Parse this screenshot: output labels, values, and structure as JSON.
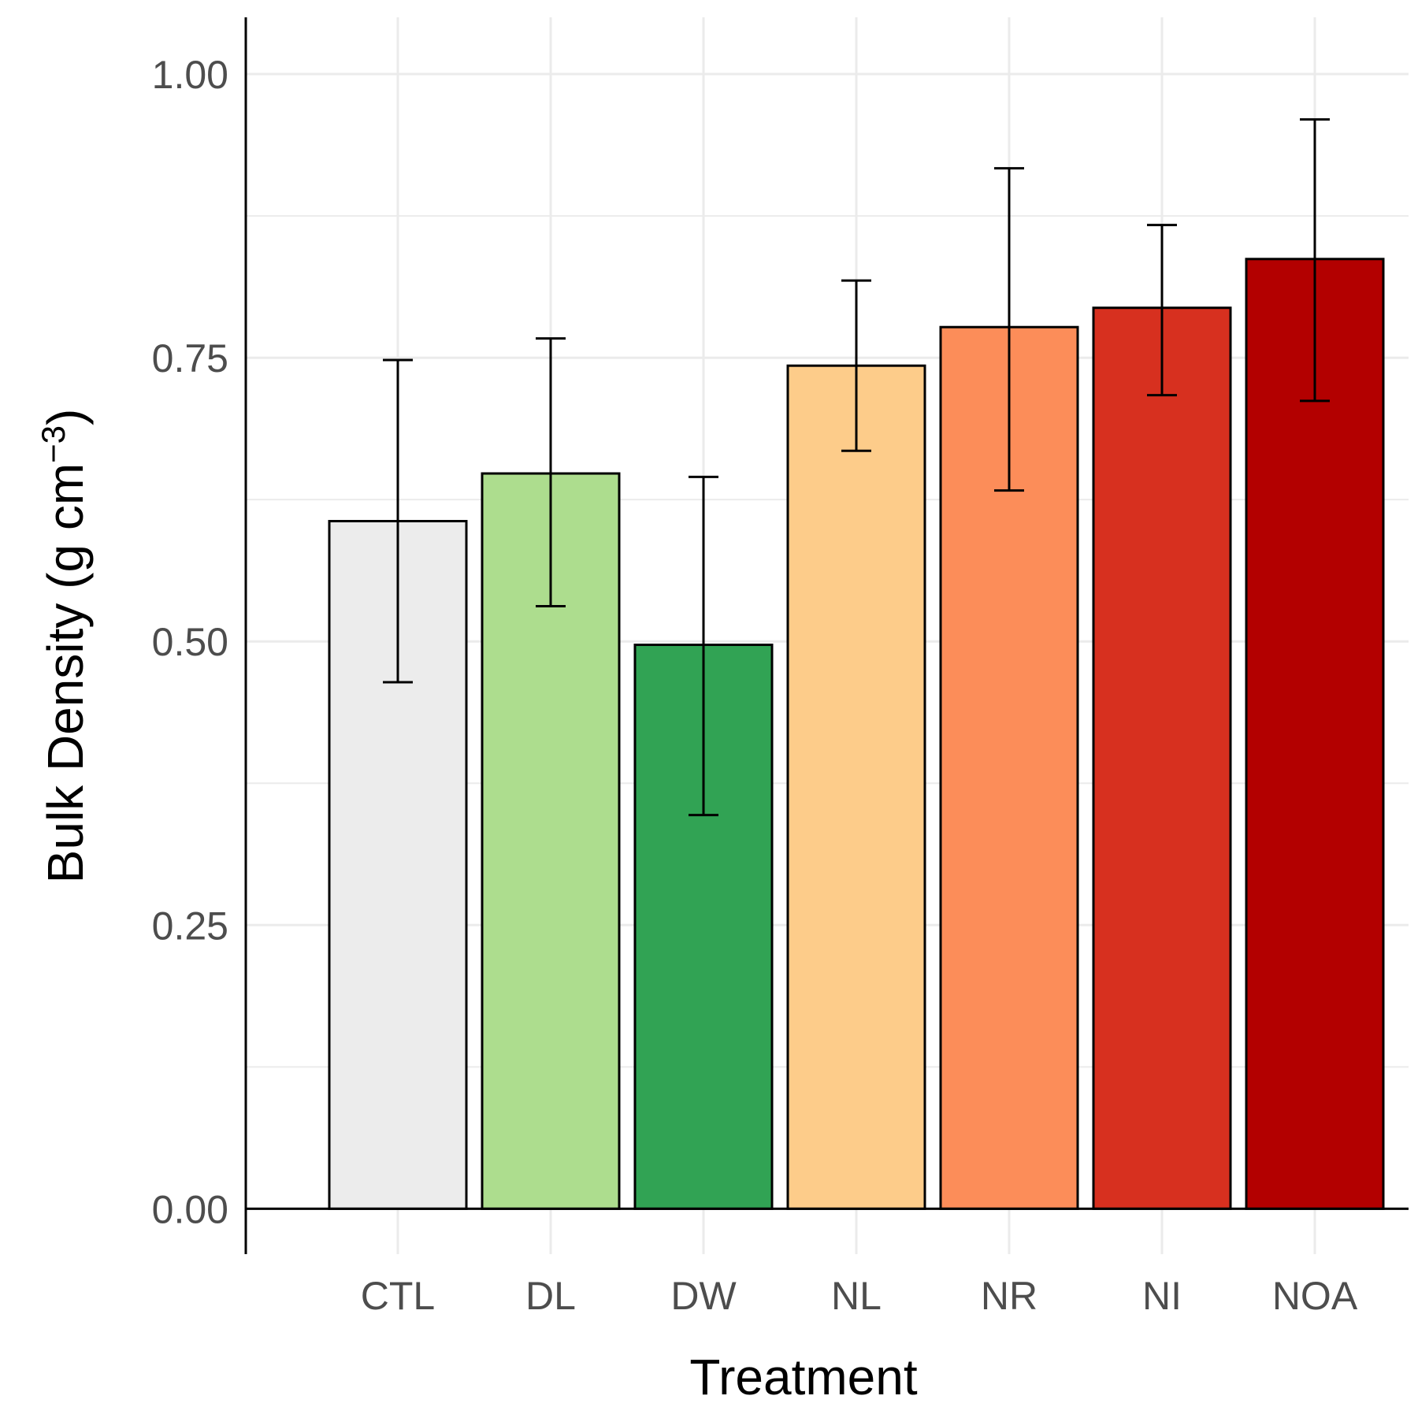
{
  "chart_data": {
    "type": "bar",
    "categories": [
      "CTL",
      "DL",
      "DW",
      "NL",
      "NR",
      "NI",
      "NOA"
    ],
    "values": [
      0.606,
      0.648,
      0.497,
      0.743,
      0.777,
      0.794,
      0.837
    ],
    "error_bars": {
      "lower": [
        0.464,
        0.531,
        0.347,
        0.668,
        0.633,
        0.717,
        0.712
      ],
      "upper": [
        0.748,
        0.767,
        0.645,
        0.818,
        0.917,
        0.867,
        0.96
      ]
    },
    "colors": [
      "#ececec",
      "#addd8e",
      "#31a354",
      "#fdcc8a",
      "#fc8d59",
      "#d7301f",
      "#b30000"
    ],
    "bar_outline_color": "#000000",
    "xlabel": "Treatment",
    "ylabel": "Bulk Density (g cm",
    "ylabel_superscript": "−3",
    "ylabel_suffix": ")",
    "ylim": [
      -0.04,
      1.05
    ],
    "yticks": [
      0.0,
      0.25,
      0.5,
      0.75,
      1.0
    ],
    "ytick_labels": [
      "0.00",
      "0.25",
      "0.50",
      "0.75",
      "1.00"
    ],
    "grid": true,
    "gridline_color": "#ebebeb",
    "legend": "none"
  }
}
